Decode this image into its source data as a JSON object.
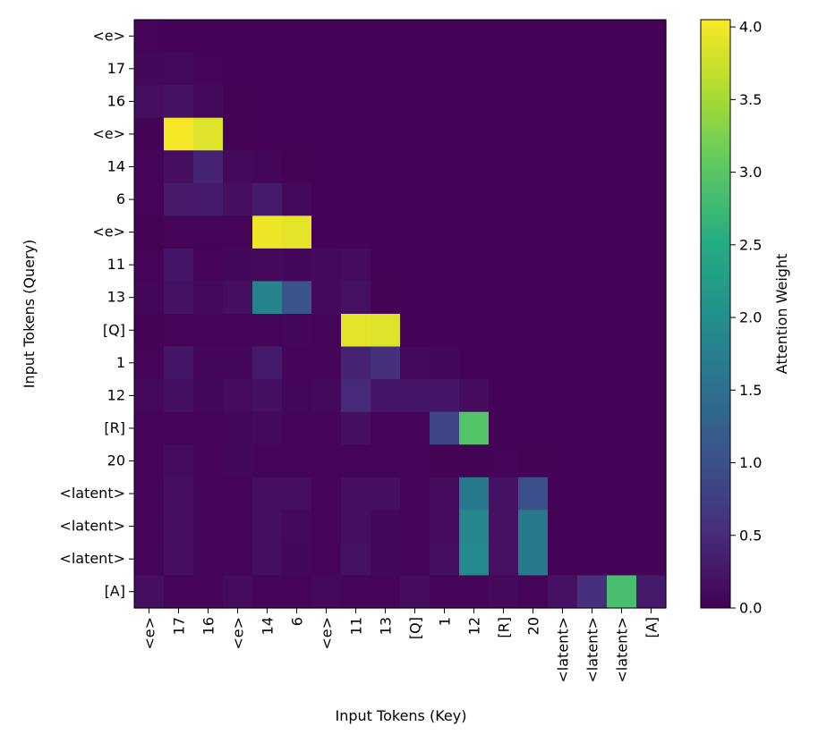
{
  "chart_data": {
    "type": "heatmap",
    "title": "",
    "xlabel": "Input Tokens (Key)",
    "ylabel": "Input Tokens (Query)",
    "colorbar_label": "Attention Weight",
    "colormap": "viridis",
    "vmin": 0.0,
    "vmax": 4.05,
    "colorbar_ticks": [
      "0.0",
      "0.5",
      "1.0",
      "1.5",
      "2.0",
      "2.5",
      "3.0",
      "3.5",
      "4.0"
    ],
    "x_tokens": [
      "<e>",
      "17",
      "16",
      "<e>",
      "14",
      "6",
      "<e>",
      "11",
      "13",
      "[Q]",
      "1",
      "12",
      "[R]",
      "20",
      "<latent>",
      "<latent>",
      "<latent>",
      "[A]"
    ],
    "y_tokens": [
      "<e>",
      "17",
      "16",
      "<e>",
      "14",
      "6",
      "<e>",
      "11",
      "13",
      "[Q]",
      "1",
      "12",
      "[R]",
      "20",
      "<latent>",
      "<latent>",
      "<latent>",
      "[A]"
    ],
    "values": [
      [
        0.05,
        0.02,
        0.02,
        0.02,
        0.02,
        0.02,
        0.02,
        0.02,
        0.02,
        0.02,
        0.02,
        0.02,
        0.02,
        0.02,
        0.02,
        0.02,
        0.02,
        0.02
      ],
      [
        0.08,
        0.1,
        0.04,
        0.02,
        0.02,
        0.02,
        0.02,
        0.02,
        0.02,
        0.02,
        0.02,
        0.02,
        0.02,
        0.02,
        0.02,
        0.02,
        0.02,
        0.02
      ],
      [
        0.15,
        0.2,
        0.1,
        0.03,
        0.02,
        0.02,
        0.02,
        0.02,
        0.02,
        0.02,
        0.02,
        0.02,
        0.02,
        0.02,
        0.02,
        0.02,
        0.02,
        0.02
      ],
      [
        0.03,
        4.0,
        3.85,
        0.03,
        0.02,
        0.02,
        0.02,
        0.02,
        0.02,
        0.02,
        0.02,
        0.02,
        0.02,
        0.02,
        0.02,
        0.02,
        0.02,
        0.02
      ],
      [
        0.05,
        0.15,
        0.4,
        0.1,
        0.06,
        0.03,
        0.02,
        0.02,
        0.02,
        0.02,
        0.02,
        0.02,
        0.02,
        0.02,
        0.02,
        0.02,
        0.02,
        0.02
      ],
      [
        0.05,
        0.28,
        0.3,
        0.15,
        0.3,
        0.1,
        0.02,
        0.02,
        0.02,
        0.02,
        0.02,
        0.02,
        0.02,
        0.02,
        0.02,
        0.02,
        0.02,
        0.02
      ],
      [
        0.03,
        0.04,
        0.04,
        0.04,
        3.95,
        3.9,
        0.02,
        0.02,
        0.02,
        0.02,
        0.02,
        0.02,
        0.02,
        0.02,
        0.02,
        0.02,
        0.02,
        0.02
      ],
      [
        0.05,
        0.25,
        0.05,
        0.08,
        0.1,
        0.08,
        0.1,
        0.12,
        0.02,
        0.02,
        0.02,
        0.02,
        0.02,
        0.02,
        0.02,
        0.02,
        0.02,
        0.02
      ],
      [
        0.06,
        0.2,
        0.1,
        0.15,
        1.8,
        1.05,
        0.1,
        0.2,
        0.03,
        0.02,
        0.02,
        0.02,
        0.02,
        0.02,
        0.02,
        0.02,
        0.02,
        0.02
      ],
      [
        0.03,
        0.04,
        0.04,
        0.04,
        0.04,
        0.06,
        0.04,
        3.9,
        3.85,
        0.02,
        0.02,
        0.02,
        0.02,
        0.02,
        0.02,
        0.02,
        0.02,
        0.02
      ],
      [
        0.05,
        0.25,
        0.06,
        0.06,
        0.3,
        0.05,
        0.05,
        0.4,
        0.55,
        0.1,
        0.08,
        0.02,
        0.02,
        0.02,
        0.02,
        0.02,
        0.02,
        0.02
      ],
      [
        0.1,
        0.18,
        0.08,
        0.12,
        0.18,
        0.06,
        0.1,
        0.5,
        0.25,
        0.25,
        0.25,
        0.12,
        0.02,
        0.02,
        0.02,
        0.02,
        0.02,
        0.02
      ],
      [
        0.04,
        0.05,
        0.05,
        0.06,
        0.1,
        0.05,
        0.05,
        0.15,
        0.05,
        0.05,
        0.85,
        2.95,
        0.02,
        0.02,
        0.02,
        0.02,
        0.02,
        0.02
      ],
      [
        0.05,
        0.12,
        0.05,
        0.08,
        0.05,
        0.05,
        0.05,
        0.05,
        0.05,
        0.05,
        0.03,
        0.03,
        0.05,
        0.03,
        0.02,
        0.02,
        0.02,
        0.02
      ],
      [
        0.05,
        0.15,
        0.05,
        0.05,
        0.15,
        0.15,
        0.05,
        0.15,
        0.15,
        0.05,
        0.12,
        1.65,
        0.2,
        1.0,
        0.02,
        0.02,
        0.02,
        0.02
      ],
      [
        0.05,
        0.15,
        0.05,
        0.05,
        0.15,
        0.1,
        0.05,
        0.15,
        0.08,
        0.05,
        0.12,
        1.9,
        0.2,
        1.65,
        0.02,
        0.02,
        0.02,
        0.02
      ],
      [
        0.05,
        0.15,
        0.05,
        0.05,
        0.15,
        0.08,
        0.05,
        0.2,
        0.08,
        0.05,
        0.15,
        1.95,
        0.2,
        1.65,
        0.02,
        0.02,
        0.02,
        0.02
      ],
      [
        0.15,
        0.05,
        0.05,
        0.12,
        0.05,
        0.05,
        0.1,
        0.05,
        0.05,
        0.12,
        0.05,
        0.05,
        0.1,
        0.05,
        0.2,
        0.55,
        2.85,
        0.3
      ]
    ]
  }
}
